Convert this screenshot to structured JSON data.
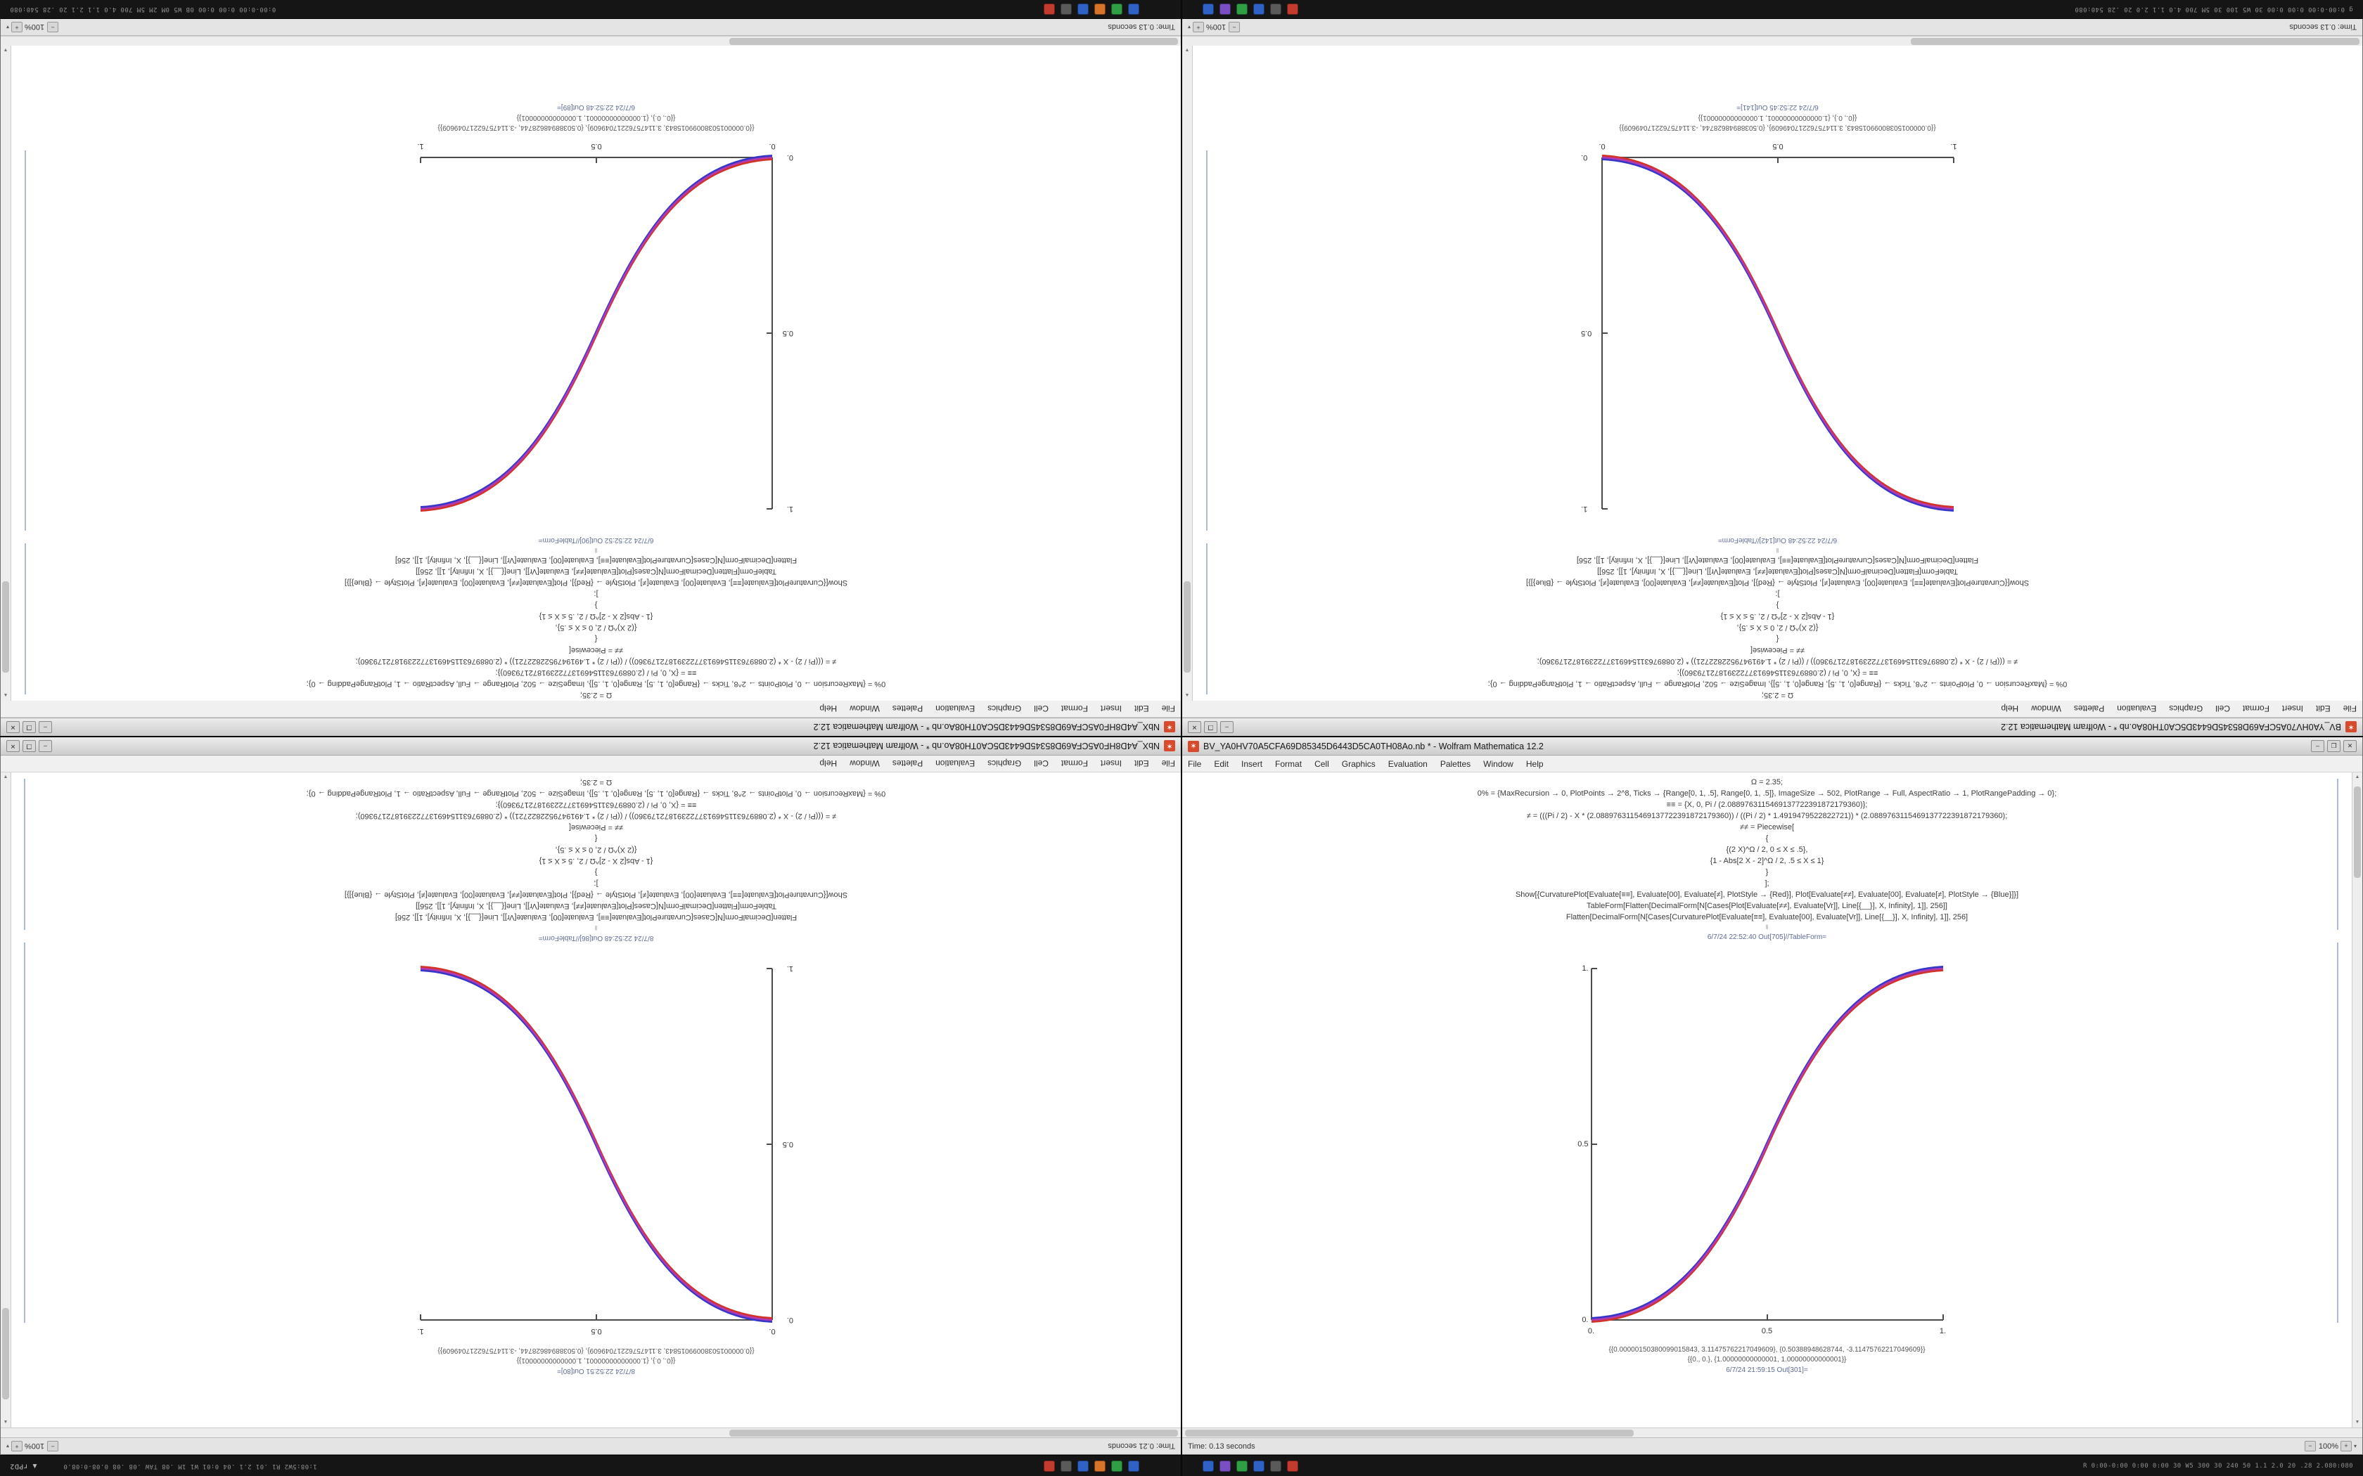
{
  "menu": [
    "File",
    "Edit",
    "Insert",
    "Format",
    "Cell",
    "Graphics",
    "Evaluation",
    "Palettes",
    "Window",
    "Help"
  ],
  "ui": {
    "min": "–",
    "max": "❐",
    "close": "✕",
    "arrow_up": "▲",
    "arrow_down": "▼",
    "zoom_out": "−",
    "zoom_in": "+",
    "caret": "▾",
    "cell_sep": "‖"
  },
  "code": [
    "Ω = 2.35;",
    "0% = {MaxRecursion → 0, PlotPoints → 2^8, Ticks → {Range[0, 1, .5], Range[0, 1, .5]}, ImageSize → 502, PlotRange → Full, AspectRatio → 1, PlotRangePadding → 0};",
    "≡≡ = {X, 0, Pi / (2.0889763115469137722391872179360)};",
    "≠ = (((Pi / 2) - X * (2.0889763115469137722391872179360)) / ((Pi / 2) * 1.4919479522822721)) * (2.0889763115469137722391872179360);",
    "≠≠ = Piecewise[",
    "{",
    "{(2 X)^Ω / 2, 0 ≤ X ≤ .5},",
    "{1 - Abs[2 X - 2]^Ω / 2, .5 ≤ X ≤ 1}",
    "}",
    "];",
    "Show[{CurvaturePlot[Evaluate[≡≡], Evaluate[00], Evaluate[≠], PlotStyle → {Red}], Plot[Evaluate[≠≠], Evaluate[00], Evaluate[≠], PlotStyle → {Blue}]}]",
    "TableForm[Flatten[DecimalForm[N[Cases[Plot[Evaluate[≠≠], Evaluate[Vr]], Line[{__}], X, Infinity], 1]], 256]]",
    "Flatten[DecimalForm[N[Cases[CurvaturePlot[Evaluate[≡≡], Evaluate[00], Evaluate[Vr]], Line[{__}], X, Infinity], 1]], 256]"
  ],
  "outputs": [
    "{{0.00000150380099015843, 3.11475762217049609}, {0.50388948628744, -3.11475762217049609}}",
    "{{0., 0.}, {1.00000000000001, 1.00000000000001}}"
  ],
  "windows": {
    "tl": {
      "title": "NbX_A4D8HF0A5CFA69D85345D6443D5CA0TH08Ao.nb * - Wolfram Mathematica 12.2",
      "status_time": "Time: 0.13 seconds",
      "status_zoom": "100%",
      "label_table": "6/7/24 22:52:52 Out[90]//TableForm=",
      "label_lines": "6/7/24 22:52:48 Out[89]=",
      "plot": {
        "type": "line",
        "direction": "rising",
        "x_range": [
          0,
          1
        ],
        "y_range": [
          0,
          1
        ],
        "x_ticks": [
          "1.",
          "0.5",
          "0."
        ],
        "y_ticks": [
          "0.",
          "0.5",
          "1."
        ],
        "series": [
          {
            "name": "CurvaturePlot",
            "color": "#d23329"
          },
          {
            "name": "Plot",
            "color": "#3636c8"
          }
        ]
      }
    },
    "tr": {
      "title": "BV_YA0HV70A5CFA69D85345D6443D5CA0TH08Ao.nb * - Wolfram Mathematica 12.2",
      "status_time": "Time: 0.13 seconds",
      "status_zoom": "100%",
      "label_table": "6/7/24 22:52:48 Out[142]//TableForm=",
      "label_lines": "6/7/24 22:52:45 Out[141]=",
      "plot": {
        "type": "line",
        "direction": "falling",
        "x_range": [
          0,
          1
        ],
        "y_range": [
          0,
          1
        ],
        "x_ticks": [
          "0.",
          "0.5",
          "1."
        ],
        "y_ticks": [
          "0.",
          "0.5",
          "1."
        ],
        "series": [
          {
            "name": "CurvaturePlot",
            "color": "#d23329"
          },
          {
            "name": "Plot",
            "color": "#3636c8"
          }
        ]
      }
    },
    "bl": {
      "title": "NbX_A4D8HF0A5CFA69D85345D6443D5CA0TH08Ao.nb * - Wolfram Mathematica 12.2",
      "status_time": "Time: 0.21 seconds",
      "status_zoom": "100%",
      "label_table": "8/7/24 22:52:48 Out[86]//TableForm=",
      "label_lines": "8/7/24 22:52:51 Out[80]=",
      "plot": {
        "type": "line",
        "direction": "falling",
        "x_range": [
          0,
          1
        ],
        "y_range": [
          0,
          1
        ],
        "x_ticks": [
          "1.",
          "0.5",
          "0."
        ],
        "y_ticks": [
          "1.",
          "0.5",
          "0."
        ],
        "series": [
          {
            "name": "CurvaturePlot",
            "color": "#d23329"
          },
          {
            "name": "Plot",
            "color": "#3636c8"
          }
        ]
      }
    },
    "br": {
      "title": "BV_YA0HV70A5CFA69D85345D6443D5CA0TH08Ao.nb * - Wolfram Mathematica 12.2",
      "status_time": "Time: 0.13 seconds",
      "status_zoom": "100%",
      "label_table": "6/7/24 22:52:40 Out[705]//TableForm=",
      "label_lines": "6/7/24 21:59:15 Out[301]=",
      "plot": {
        "type": "line",
        "direction": "rising",
        "x_range": [
          0,
          1
        ],
        "y_range": [
          0,
          1
        ],
        "x_ticks": [
          "0.",
          "0.5",
          "1."
        ],
        "y_ticks": [
          "1.",
          "0.5",
          "0."
        ],
        "series": [
          {
            "name": "CurvaturePlot",
            "color": "#d23329"
          },
          {
            "name": "Plot",
            "color": "#3636c8"
          }
        ]
      }
    }
  },
  "panels": {
    "top": {
      "left_text": "0:00-0:00 0:00 0:00 0B W5 0M 2M 5M 700 4.0 1.1 2.1 20 .28 540:080",
      "right_text": "g 0:00-0:00 0:00 0:00 30 W5 100 30 5M 700 4.0 1.1 2.0 20 .28 540:080"
    },
    "bottom": {
      "pager": "▲ rPD2",
      "left_text": "1:08:5W2 R1 .01 2.1 .04 0:01 W1 1M .08 TAW .08 .08 0.08-0:08.0",
      "right_text": "R 0:00-0:00 0:00 0:00 30 W5 300 30 240 50 1.1 2.0 20 .28 2.080:080"
    },
    "icons_left": [
      "#c23b2e",
      "#5a5a5a",
      "#2f62c4",
      "#d8742a",
      "#2f9e44",
      "#2f62c4"
    ],
    "icons_right": [
      "#2f62c4",
      "#7b4fc4",
      "#2f9e44",
      "#2f62c4",
      "#5a5a5a",
      "#c23b2e"
    ]
  }
}
